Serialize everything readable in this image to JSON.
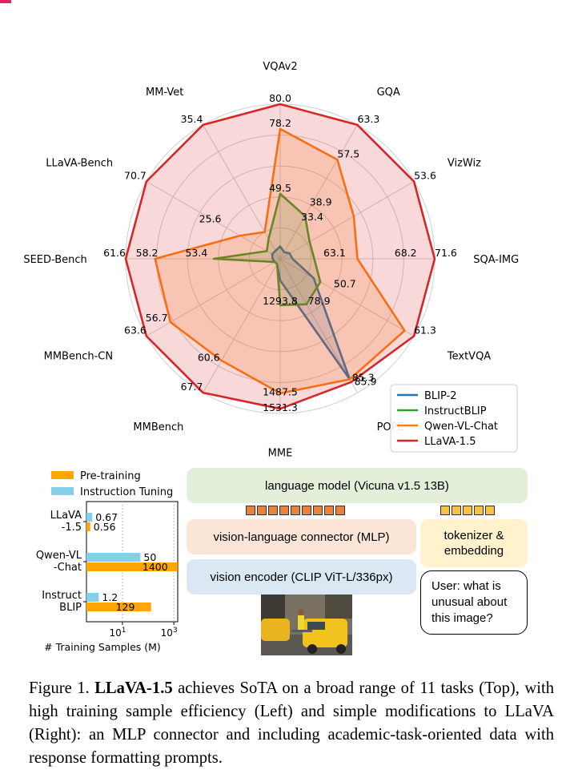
{
  "chart_data": [
    {
      "type": "radar",
      "axes": [
        "VQAv2",
        "GQA",
        "VizWiz",
        "SQA-IMG",
        "TextVQA",
        "POPE",
        "MME",
        "MMBench",
        "MMBench-CN",
        "SEED-Bench",
        "LLaVA-Bench",
        "MM-Vet"
      ],
      "series": [
        {
          "name": "BLIP-2",
          "color": "#1f77b4",
          "values": [
            0.08,
            0.05,
            0.07,
            0.08,
            0.25,
            0.9,
            0.14,
            0.04,
            0.04,
            0.05,
            0.06,
            0.06
          ]
        },
        {
          "name": "InstructBLIP",
          "color": "#2ca02c",
          "values": [
            0.42,
            0.32,
            0.22,
            0.22,
            0.3,
            0.34,
            0.3,
            0.04,
            0.04,
            0.43,
            0.1,
            0.15
          ]
        },
        {
          "name": "Qwen-VL-Chat",
          "color": "#ff7f0e",
          "values": [
            0.84,
            0.74,
            0.55,
            0.5,
            0.93,
            0.9,
            0.87,
            0.76,
            0.82,
            0.81,
            0.3,
            0.2
          ]
        },
        {
          "name": "LLaVA-1.5",
          "color": "#d62728",
          "values": [
            1.0,
            1.0,
            1.0,
            1.0,
            1.0,
            0.92,
            0.97,
            1.0,
            1.0,
            1.0,
            1.0,
            1.0
          ]
        }
      ],
      "value_labels": [
        {
          "axis": "VQAv2",
          "r": 1.0,
          "text": "80.0"
        },
        {
          "axis": "VQAv2",
          "r": 0.84,
          "text": "78.2"
        },
        {
          "axis": "VQAv2",
          "r": 0.42,
          "text": "49.5"
        },
        {
          "axis": "GQA",
          "r": 1.0,
          "text": "63.3"
        },
        {
          "axis": "GQA",
          "r": 0.74,
          "text": "57.5"
        },
        {
          "axis": "GQA",
          "r": 0.38,
          "text": "38.9"
        },
        {
          "axis": "GQA",
          "r": 0.27,
          "text": "33.4"
        },
        {
          "axis": "VizWiz",
          "r": 1.0,
          "text": "53.6"
        },
        {
          "axis": "SQA-IMG",
          "r": 1.0,
          "text": "71.6"
        },
        {
          "axis": "SQA-IMG",
          "r": 0.74,
          "text": "68.2"
        },
        {
          "axis": "SQA-IMG",
          "r": 0.28,
          "text": "63.1"
        },
        {
          "axis": "TextVQA",
          "r": 1.0,
          "text": "61.3"
        },
        {
          "axis": "TextVQA",
          "r": 0.4,
          "text": "50.7"
        },
        {
          "axis": "POPE",
          "r": 0.93,
          "text": "85.3"
        },
        {
          "axis": "POPE",
          "r": 0.96,
          "text": "85.9"
        },
        {
          "axis": "POPE",
          "r": 0.36,
          "text": "78.9"
        },
        {
          "axis": "MME",
          "r": 1.0,
          "text": "1531.3"
        },
        {
          "axis": "MME",
          "r": 0.9,
          "text": "1487.5"
        },
        {
          "axis": "MME",
          "r": 0.31,
          "text": "1293.8"
        },
        {
          "axis": "MMBench",
          "r": 1.0,
          "text": "67.7"
        },
        {
          "axis": "MMBench",
          "r": 0.78,
          "text": "60.6"
        },
        {
          "axis": "MMBench-CN",
          "r": 1.0,
          "text": "63.6"
        },
        {
          "axis": "MMBench-CN",
          "r": 0.84,
          "text": "56.7"
        },
        {
          "axis": "SEED-Bench",
          "r": 1.0,
          "text": "61.6"
        },
        {
          "axis": "SEED-Bench",
          "r": 0.79,
          "text": "58.2"
        },
        {
          "axis": "SEED-Bench",
          "r": 0.47,
          "text": "53.4"
        },
        {
          "axis": "LLaVA-Bench",
          "r": 1.0,
          "text": "70.7"
        },
        {
          "axis": "LLaVA-Bench",
          "r": 0.44,
          "text": "25.6"
        },
        {
          "axis": "MM-Vet",
          "r": 1.0,
          "text": "35.4"
        }
      ],
      "grid": true,
      "legend": "bottom-right"
    },
    {
      "type": "bar",
      "orientation": "horizontal",
      "xscale": "log",
      "xlabel": "# Training Samples (M)",
      "xticks": [
        "10^1",
        "10^3"
      ],
      "categories": [
        "LLaVA -1.5",
        "Qwen-VL -Chat",
        "Instruct BLIP"
      ],
      "category_lines": [
        [
          "LLaVA",
          "-1.5"
        ],
        [
          "Qwen-VL",
          "-Chat"
        ],
        [
          "Instruct",
          "BLIP"
        ]
      ],
      "series": [
        {
          "name": "Instruction Tuning",
          "color": "#87ceeb",
          "values": [
            0.67,
            50,
            1.2
          ],
          "labels": [
            "0.67",
            "50",
            "1.2"
          ]
        },
        {
          "name": "Pre-training",
          "color": "#ffa500",
          "values": [
            0.56,
            1400,
            129
          ],
          "labels": [
            "0.56",
            "1400",
            "129"
          ]
        }
      ],
      "legend": "top"
    }
  ],
  "diagram": {
    "language_model": "language model (Vicuna v1.5 13B)",
    "connector": "vision-language connector (MLP)",
    "vision_encoder": "vision encoder (CLIP ViT-L/336px)",
    "tokenizer_line1": "tokenizer &",
    "tokenizer_line2": "embedding",
    "user_line1": "User: what is",
    "user_line2": "unusual about",
    "user_line3": "this image?",
    "orange_token_count": 9,
    "yellow_token_count": 5
  },
  "caption": {
    "prefix": "Figure 1.",
    "bold": "LLaVA-1.5",
    "rest": "achieves SoTA on a broad range of 11 tasks (Top), with high training sample efficiency (Left) and simple modifications to LLaVA (Right): an MLP connector and including academic-task-oriented data with response formatting prompts."
  }
}
